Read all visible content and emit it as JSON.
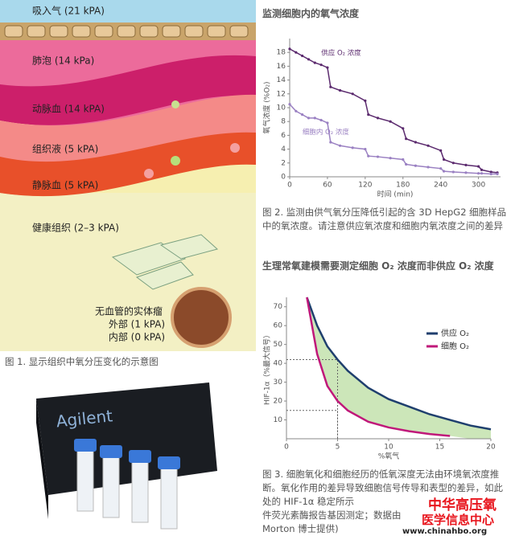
{
  "figure1": {
    "labels": [
      "吸入气 (21 kPA)",
      "肺泡 (14 kPa)",
      "动脉血 (14 kPA)",
      "组织液 (5 kPA)",
      "静脉血 (5 kPA)",
      "健康组织 (2–3 kPA)",
      "无血管的实体瘤",
      "外部 (1 kPA)",
      "内部 (0 kPA)"
    ],
    "caption": "图 1. 显示组织中氧分压变化的示意图"
  },
  "product": {
    "brand": "Agilent"
  },
  "section1": {
    "title": "监测细胞内的氧气浓度",
    "caption": "图 2. 监测由供气氧分压降低引起的含 3D HepG2 细胞样品中的氧浓度。请注意供应氧浓度和细胞内氧浓度之间的差异"
  },
  "section2": {
    "title": "生理常氧建模需要测定细胞 O₂ 浓度而非供应 O₂ 浓度",
    "caption": [
      "图 3. 细胞氧化和细胞经历的低氧深度无法由环境氧浓度推断。氧化作用的差异导致细胞信号传导和表型的差异，如此处的 HIF-1α 稳定所示",
      "件荧光素酶报告基因测定；数据由",
      "Morton 博士提供)"
    ]
  },
  "watermark": [
    "中华高压氧",
    "医学信息中心",
    "www.chinahbo.org"
  ],
  "chart_data": [
    {
      "type": "line",
      "x_label": "时间 (min)",
      "y_label": "氧气浓度 (%O₂)",
      "x": [
        0,
        10,
        20,
        30,
        40,
        50,
        60,
        65,
        80,
        100,
        120,
        125,
        140,
        160,
        180,
        185,
        200,
        220,
        240,
        245,
        260,
        280,
        300,
        305,
        320,
        330
      ],
      "series": [
        {
          "name": "供应 O₂ 浓度",
          "color": "#5b2a6e",
          "values": [
            18.5,
            18,
            17.5,
            17,
            16.5,
            16.2,
            15.8,
            13,
            12.5,
            12,
            11,
            9,
            8.5,
            8,
            7,
            5.5,
            5,
            4.5,
            3.8,
            2.5,
            2,
            1.7,
            1.5,
            1,
            0.7,
            0.6
          ]
        },
        {
          "name": "细胞内 O₂ 浓度",
          "color": "#9a80c2",
          "values": [
            10.5,
            9.5,
            9,
            8.5,
            8.5,
            8.2,
            7.8,
            5,
            4.5,
            4.2,
            4,
            3,
            2.9,
            2.7,
            2.5,
            1.8,
            1.6,
            1.4,
            1.2,
            0.8,
            0.7,
            0.6,
            0.5,
            0.5,
            0.4,
            0.4
          ]
        }
      ],
      "xlim": [
        0,
        335
      ],
      "xticks": [
        0,
        60,
        120,
        180,
        240,
        300
      ],
      "ylim": [
        0,
        20
      ],
      "yticks": [
        0,
        2,
        4,
        6,
        8,
        10,
        12,
        14,
        16,
        18
      ],
      "grid": false
    },
    {
      "type": "line",
      "x_label": "%氧气",
      "y_label": "HIF-1α（%最大信号）",
      "x": [
        2,
        3,
        4,
        5,
        6,
        8,
        10,
        12,
        14,
        16,
        18,
        20
      ],
      "series": [
        {
          "name": "供应 O₂",
          "color": "#1f3f6e",
          "values": [
            75,
            60,
            49,
            42,
            36,
            27,
            21,
            17,
            13,
            10,
            7,
            5
          ]
        },
        {
          "name": "细胞 O₂",
          "color": "#c0187a",
          "values": [
            75,
            45,
            28,
            20,
            15,
            9,
            6,
            4,
            2.5,
            1.5,
            null,
            null
          ]
        }
      ],
      "reference_points": [
        {
          "x": 5,
          "y": 42
        },
        {
          "x": 5,
          "y": 15
        }
      ],
      "xlim": [
        0,
        20
      ],
      "xticks": [
        0,
        5,
        10,
        15,
        20
      ],
      "ylim": [
        0,
        75
      ],
      "yticks": [
        10,
        20,
        30,
        40,
        50,
        60,
        70
      ],
      "legend": "upper right",
      "fill_between": "#bfe0a8"
    }
  ]
}
